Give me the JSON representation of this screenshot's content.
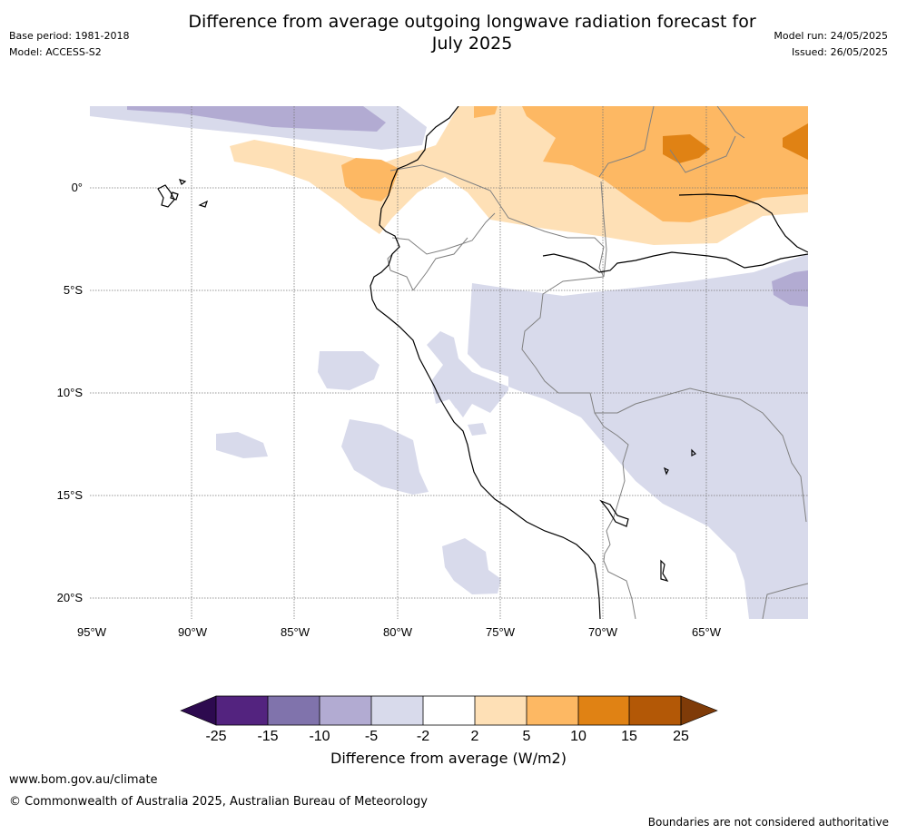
{
  "header": {
    "title_line1": "Difference from average outgoing longwave radiation forecast for",
    "title_line2": "July 2025",
    "base_period": "Base period: 1981-2018",
    "model": "Model: ACCESS-S2",
    "model_run": "Model run: 24/05/2025",
    "issued": "Issued: 26/05/2025"
  },
  "map": {
    "lat_labels": [
      "0°",
      "5°S",
      "10°S",
      "15°S",
      "20°S"
    ],
    "lon_labels": [
      "95°W",
      "90°W",
      "85°W",
      "80°W",
      "75°W",
      "70°W",
      "65°W"
    ],
    "lat_values": [
      0,
      -5,
      -10,
      -15,
      -20
    ],
    "lon_values": [
      -95,
      -90,
      -85,
      -80,
      -75,
      -70,
      -65
    ],
    "lon_range": [
      -95,
      -60
    ],
    "lat_range": [
      -21,
      4
    ],
    "gridlines": true
  },
  "colorbar": {
    "label": "Difference from average (W/m2)",
    "ticks": [
      "-25",
      "-15",
      "-10",
      "-5",
      "-2",
      "2",
      "5",
      "10",
      "15",
      "25"
    ],
    "colors": {
      "below_min": "#2d0a4f",
      "bins": [
        "#53237f",
        "#8073ac",
        "#b2abd2",
        "#d8daeb",
        "#ffffff",
        "#fee0b6",
        "#fdb863",
        "#e08214",
        "#b35806"
      ],
      "above_max": "#7f3b08"
    }
  },
  "footer": {
    "url": "www.bom.gov.au/climate",
    "copyright": "© Commonwealth of Australia 2025, Australian Bureau of Meteorology",
    "disclaimer": "Boundaries are not considered authoritative"
  }
}
